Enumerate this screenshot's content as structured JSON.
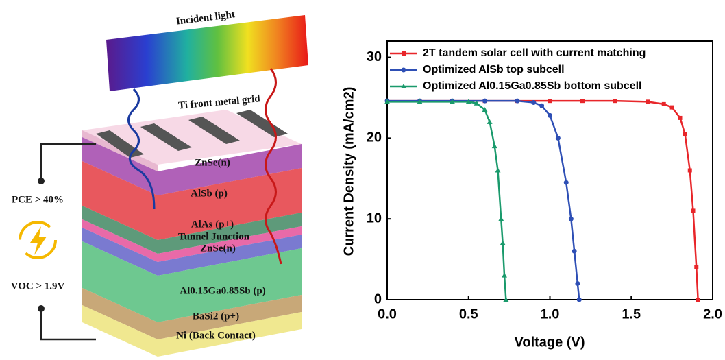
{
  "diagram": {
    "incident_light": "Incident light",
    "grid": "Ti front metal grid",
    "layers": [
      "ZnSe(n)",
      "AlSb (p)",
      "AlAs (p+)",
      "Tunnel Junction",
      "ZnSe(n)",
      "Al0.15Ga0.85Sb (p)",
      "BaSi2 (p+)",
      "Ni (Back Contact)"
    ],
    "pce": "PCE > 40%",
    "voc": "VOC > 1.9V"
  },
  "chart_data": {
    "type": "line",
    "x_label": "Voltage (V)",
    "y_label": "Current Density (mA/cm2)",
    "xlim": [
      0,
      2
    ],
    "xticks": [
      {
        "value": 0,
        "label": "0.0"
      },
      {
        "value": 0.5,
        "label": "0.5"
      },
      {
        "value": 1,
        "label": "1.0"
      },
      {
        "value": 1.5,
        "label": "1.5"
      },
      {
        "value": 2,
        "label": "2.0"
      }
    ],
    "ylim": [
      0,
      32
    ],
    "yticks": [
      0,
      10,
      20,
      30
    ],
    "legend": "upper left",
    "series": [
      {
        "name": "2T tandem solar cell with current matching",
        "color": "#e8262a",
        "marker": "square",
        "x": [
          0,
          0.2,
          0.4,
          0.6,
          0.8,
          1.0,
          1.2,
          1.4,
          1.6,
          1.7,
          1.75,
          1.8,
          1.83,
          1.86,
          1.88,
          1.9,
          1.91
        ],
        "values": [
          24.6,
          24.6,
          24.6,
          24.6,
          24.6,
          24.6,
          24.6,
          24.6,
          24.5,
          24.2,
          23.8,
          22.5,
          20.5,
          16,
          11,
          4,
          0
        ]
      },
      {
        "name": "Optimized AlSb top subcell",
        "color": "#2e4fb5",
        "marker": "circle",
        "x": [
          0,
          0.2,
          0.4,
          0.6,
          0.8,
          0.9,
          0.95,
          1.0,
          1.05,
          1.1,
          1.13,
          1.15,
          1.17,
          1.18
        ],
        "values": [
          24.6,
          24.6,
          24.6,
          24.6,
          24.6,
          24.4,
          24.0,
          22.8,
          20.0,
          14.5,
          10,
          6,
          2,
          0
        ]
      },
      {
        "name": "Optimized Al0.15Ga0.85Sb bottom subcell",
        "color": "#1a9a6c",
        "marker": "triangle",
        "x": [
          0,
          0.2,
          0.4,
          0.5,
          0.55,
          0.6,
          0.63,
          0.66,
          0.68,
          0.7,
          0.71,
          0.72,
          0.73
        ],
        "values": [
          24.5,
          24.5,
          24.5,
          24.5,
          24.3,
          23.5,
          22,
          19,
          16,
          10,
          7,
          3,
          0
        ]
      }
    ]
  }
}
